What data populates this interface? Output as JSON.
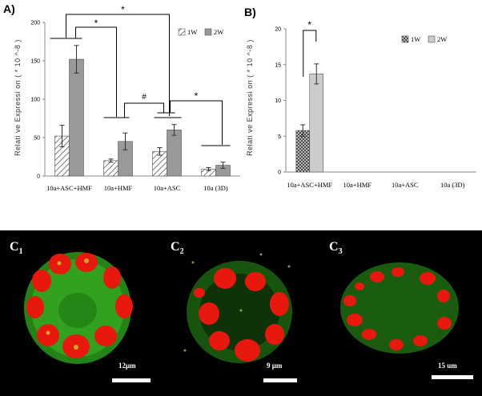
{
  "chart_data": [
    {
      "panel": "A)",
      "type": "bar",
      "ylabel": "Relati ve Expressi on ( * 10 ^-8 )",
      "ylim": [
        0,
        200
      ],
      "yticks": [
        "0",
        "50",
        "100",
        "150",
        "200"
      ],
      "categories": [
        "10a+ASC+HMF",
        "10a+HMF",
        "10a+ASC",
        "10a (3D)"
      ],
      "series": [
        {
          "name": "1W",
          "pattern": "hatch",
          "values": [
            52,
            20,
            32,
            9
          ],
          "errors": [
            14,
            2,
            5,
            2
          ]
        },
        {
          "name": "2W",
          "pattern": "gray",
          "values": [
            152,
            45,
            60,
            14
          ],
          "errors": [
            18,
            11,
            7,
            4
          ]
        }
      ],
      "annotations": [
        "*",
        "*",
        "#",
        "*"
      ],
      "legend": "top-right"
    },
    {
      "panel": "B)",
      "type": "bar",
      "ylabel": "Relati ve Expressi on ( * 10 ^-8 )",
      "ylim": [
        0,
        20
      ],
      "yticks": [
        "0",
        "5",
        "10",
        "15",
        "20"
      ],
      "categories": [
        "10a+ASC+HMF",
        "10a+HMF",
        "10a+ASC",
        "10a (3D)"
      ],
      "series": [
        {
          "name": "1W",
          "pattern": "crosshatch",
          "values": [
            5.8,
            null,
            null,
            null
          ],
          "errors": [
            0.8,
            null,
            null,
            null
          ]
        },
        {
          "name": "2W",
          "pattern": "lightgray",
          "values": [
            13.7,
            null,
            null,
            null
          ],
          "errors": [
            1.4,
            null,
            null,
            null
          ]
        }
      ],
      "annotations": [
        "*"
      ],
      "legend": "top-right"
    }
  ],
  "micrographs": [
    {
      "label_main": "C",
      "label_sub": "1",
      "scale": "12μm"
    },
    {
      "label_main": "C",
      "label_sub": "2",
      "scale": "9 μm"
    },
    {
      "label_main": "C",
      "label_sub": "3",
      "scale": "15 um"
    }
  ],
  "colors": {
    "nuclei": "#e8180e",
    "cytoplasm": "#2fa81c",
    "hatch": "#555555",
    "bar_2w_a": "#999999",
    "bar_2w_b": "#cccccc"
  }
}
